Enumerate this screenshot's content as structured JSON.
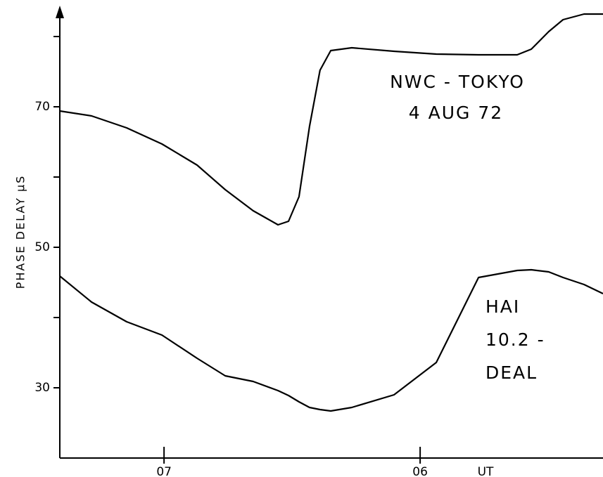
{
  "chart_data": {
    "type": "line",
    "y_label": "PHASE DELAY μS",
    "x_label": "UT",
    "annotations": [
      "NWC - TOKYO",
      "4 AUG 72",
      "HAI",
      "10.2 -",
      "DEAL"
    ],
    "x": [
      7.407,
      7.283,
      7.146,
      7.008,
      6.871,
      6.761,
      6.652,
      6.555,
      6.514,
      6.473,
      6.432,
      6.391,
      6.349,
      6.267,
      6.102,
      5.937,
      5.772,
      5.621,
      5.566,
      5.498,
      5.442,
      5.36,
      5.286
    ],
    "series": [
      {
        "color": "#000000",
        "values": [
          69.4,
          68.7,
          67.0,
          64.7,
          61.7,
          58.2,
          55.2,
          53.2,
          53.7,
          57.2,
          67.2,
          75.2,
          78.0,
          78.4,
          77.9,
          77.5,
          77.4,
          77.4,
          78.2,
          80.7,
          82.4,
          83.2,
          83.2
        ]
      },
      {
        "color": "#000000",
        "values": [
          45.9,
          42.2,
          39.4,
          37.5,
          34.2,
          31.7,
          30.9,
          29.6,
          28.9,
          28.0,
          27.2,
          26.9,
          26.7,
          27.2,
          29.0,
          33.6,
          45.7,
          46.7,
          46.8,
          46.5,
          45.7,
          44.7,
          43.4
        ]
      }
    ],
    "xlim": [
      7.407,
      5.286
    ],
    "xticks": [
      {
        "value": 7,
        "label": "07"
      },
      {
        "value": 6,
        "label": "06"
      }
    ],
    "ylim": [
      20,
      84
    ],
    "yticks": [
      30,
      50,
      70
    ],
    "yminorticks": [
      40,
      60,
      80
    ]
  }
}
